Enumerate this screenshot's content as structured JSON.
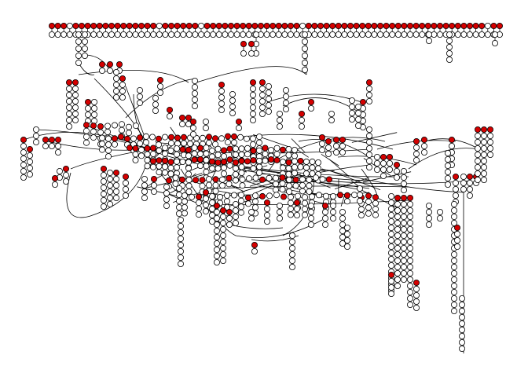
{
  "diagram": {
    "type": "network-graph",
    "labels_visible": false,
    "background": "#ffffff",
    "colors": {
      "highlighted_node": "#d40000",
      "plain_node": "#ffffff",
      "node_outline": "#000000",
      "edge": "#000000"
    },
    "legend": "none",
    "description": ""
  }
}
